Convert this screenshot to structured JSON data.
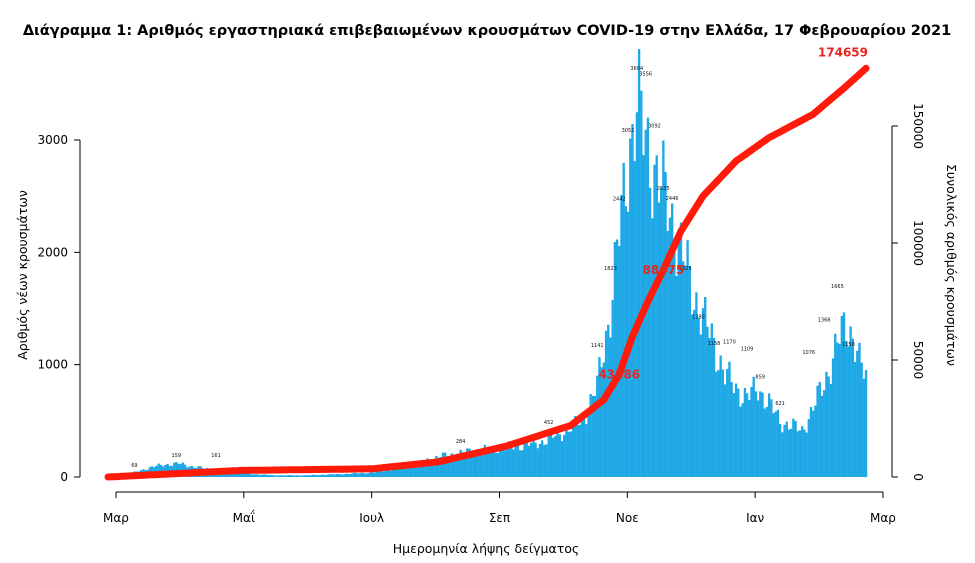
{
  "chart_data": {
    "type": "bar",
    "title": "Διάγραμμα 1: Αριθμός εργαστηριακά επιβεβαιωμένων κρουσμάτων COVID-19 στην Ελλάδα, 17 Φεβρουαρίου 2021",
    "xlabel": "Ημερομηνία λήψης δείγματος",
    "ylabel": "Αριθμός νέων κρουσμάτων",
    "y2label": "Συνολικός αριθμός κρουσμάτων",
    "x_ticks": [
      "Μαρ",
      "Μαΐ",
      "Ιουλ",
      "Σεπ",
      "Νοε",
      "Ιαν",
      "Μαρ"
    ],
    "y_ticks": [
      "0",
      "1000",
      "2000",
      "3000"
    ],
    "y2_ticks": [
      "0",
      "50000",
      "100000",
      "150000"
    ],
    "ylim": [
      0,
      3800
    ],
    "y2lim": [
      0,
      176000
    ],
    "bar_color": "#1ea8e6",
    "line_color": "#ff1a0a",
    "daily_anchors": [
      {
        "day": 0,
        "value": 0
      },
      {
        "day": 6,
        "value": 5
      },
      {
        "day": 12,
        "value": 40
      },
      {
        "day": 20,
        "value": 90
      },
      {
        "day": 26,
        "value": 110
      },
      {
        "day": 32,
        "value": 120
      },
      {
        "day": 38,
        "value": 95
      },
      {
        "day": 46,
        "value": 70
      },
      {
        "day": 54,
        "value": 60
      },
      {
        "day": 62,
        "value": 30
      },
      {
        "day": 75,
        "value": 15
      },
      {
        "day": 90,
        "value": 15
      },
      {
        "day": 105,
        "value": 25
      },
      {
        "day": 120,
        "value": 40
      },
      {
        "day": 135,
        "value": 90
      },
      {
        "day": 150,
        "value": 180
      },
      {
        "day": 165,
        "value": 230
      },
      {
        "day": 180,
        "value": 260
      },
      {
        "day": 195,
        "value": 300
      },
      {
        "day": 205,
        "value": 380
      },
      {
        "day": 215,
        "value": 500
      },
      {
        "day": 222,
        "value": 800
      },
      {
        "day": 228,
        "value": 1500
      },
      {
        "day": 233,
        "value": 2300
      },
      {
        "day": 237,
        "value": 3000
      },
      {
        "day": 240,
        "value": 3300
      },
      {
        "day": 243,
        "value": 3050
      },
      {
        "day": 246,
        "value": 2900
      },
      {
        "day": 250,
        "value": 2600
      },
      {
        "day": 255,
        "value": 2400
      },
      {
        "day": 260,
        "value": 2000
      },
      {
        "day": 265,
        "value": 1700
      },
      {
        "day": 270,
        "value": 1400
      },
      {
        "day": 275,
        "value": 1200
      },
      {
        "day": 280,
        "value": 900
      },
      {
        "day": 285,
        "value": 800
      },
      {
        "day": 290,
        "value": 700
      },
      {
        "day": 295,
        "value": 800
      },
      {
        "day": 300,
        "value": 650
      },
      {
        "day": 305,
        "value": 500
      },
      {
        "day": 310,
        "value": 450
      },
      {
        "day": 315,
        "value": 420
      },
      {
        "day": 320,
        "value": 600
      },
      {
        "day": 325,
        "value": 850
      },
      {
        "day": 330,
        "value": 1100
      },
      {
        "day": 335,
        "value": 1400
      },
      {
        "day": 338,
        "value": 1250
      },
      {
        "day": 341,
        "value": 1000
      },
      {
        "day": 344,
        "value": 900
      }
    ],
    "cumulative_anchors": [
      {
        "day": 0,
        "value": 0
      },
      {
        "day": 60,
        "value": 2800
      },
      {
        "day": 120,
        "value": 3500
      },
      {
        "day": 150,
        "value": 6500
      },
      {
        "day": 180,
        "value": 13000
      },
      {
        "day": 210,
        "value": 22000
      },
      {
        "day": 225,
        "value": 33000
      },
      {
        "day": 232,
        "value": 43886
      },
      {
        "day": 238,
        "value": 60000
      },
      {
        "day": 245,
        "value": 75000
      },
      {
        "day": 252,
        "value": 88475
      },
      {
        "day": 260,
        "value": 105000
      },
      {
        "day": 270,
        "value": 120000
      },
      {
        "day": 285,
        "value": 135000
      },
      {
        "day": 300,
        "value": 145000
      },
      {
        "day": 320,
        "value": 155000
      },
      {
        "day": 335,
        "value": 167000
      },
      {
        "day": 344,
        "value": 174659
      }
    ],
    "peak_labels": [
      {
        "day": 12,
        "text": "69"
      },
      {
        "day": 31,
        "text": "159"
      },
      {
        "day": 49,
        "text": "161"
      },
      {
        "day": 160,
        "text": "284"
      },
      {
        "day": 200,
        "text": "452"
      },
      {
        "day": 222,
        "text": "1141"
      },
      {
        "day": 228,
        "text": "1823"
      },
      {
        "day": 232,
        "text": "2442"
      },
      {
        "day": 236,
        "text": "3052"
      },
      {
        "day": 240,
        "text": "3604"
      },
      {
        "day": 244,
        "text": "3556"
      },
      {
        "day": 248,
        "text": "3092"
      },
      {
        "day": 252,
        "text": "2535"
      },
      {
        "day": 256,
        "text": "2446"
      },
      {
        "day": 262,
        "text": "1825"
      },
      {
        "day": 268,
        "text": "1393"
      },
      {
        "day": 275,
        "text": "1158"
      },
      {
        "day": 282,
        "text": "1170"
      },
      {
        "day": 290,
        "text": "1109"
      },
      {
        "day": 296,
        "text": "859"
      },
      {
        "day": 305,
        "text": "621"
      },
      {
        "day": 318,
        "text": "1076"
      },
      {
        "day": 325,
        "text": "1368"
      },
      {
        "day": 331,
        "text": "1665"
      },
      {
        "day": 336,
        "text": "1150"
      }
    ],
    "cumulative_labels": [
      {
        "day": 232,
        "text": "43886"
      },
      {
        "day": 252,
        "text": "88475"
      },
      {
        "day": 344,
        "text": "174659"
      }
    ]
  }
}
